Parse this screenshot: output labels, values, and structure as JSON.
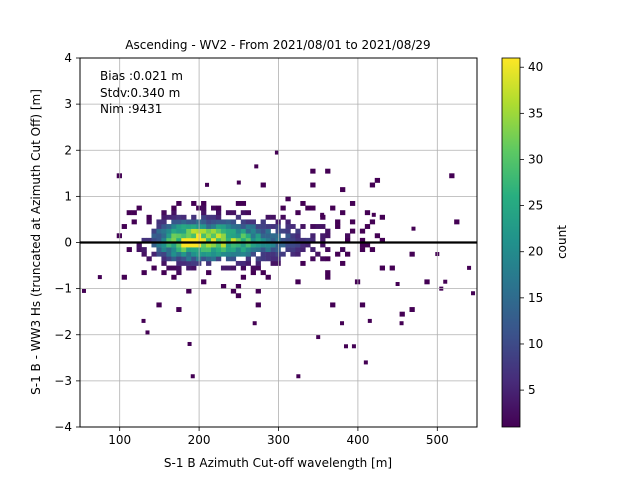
{
  "chart_data": {
    "type": "heatmap",
    "title": "Ascending - WV2 - From 2021/08/01 to 2021/08/29",
    "xlabel": "S-1 B Azimuth Cut-off wavelength [m]",
    "ylabel": "S-1 B - WW3 Hs (truncated at Azimuth Cut Off) [m]",
    "xlim": [
      50,
      550
    ],
    "ylim": [
      -4,
      4
    ],
    "xticks": [
      100,
      200,
      300,
      400,
      500
    ],
    "yticks": [
      -4,
      -3,
      -2,
      -1,
      0,
      1,
      2,
      3,
      4
    ],
    "grid": true,
    "zero_line": 0,
    "annotations": [
      "Bias :0.021 m",
      "Stdv:0.340 m",
      "Nim :9431"
    ],
    "colorbar": {
      "label": "count",
      "range": [
        1,
        41
      ],
      "ticks": [
        5,
        10,
        15,
        20,
        25,
        30,
        35,
        40
      ],
      "colormap": "viridis"
    },
    "stats": {
      "bias": 0.021,
      "stdv": 0.34,
      "n": 9431
    },
    "density_model": {
      "center_x": 190,
      "center_y": 0.05,
      "peak_count": 41,
      "x_sigma_left": 35,
      "x_sigma_right": 90,
      "y_sigma": 0.32
    },
    "outliers": [
      [
        55,
        -1.05
      ],
      [
        75,
        -0.75
      ],
      [
        130,
        -1.7
      ],
      [
        135,
        -1.95
      ],
      [
        188,
        -2.2
      ],
      [
        192,
        -2.9
      ],
      [
        270,
        -1.75
      ],
      [
        325,
        -2.9
      ],
      [
        350,
        -2.05
      ],
      [
        385,
        -2.25
      ],
      [
        395,
        -2.25
      ],
      [
        410,
        -2.6
      ],
      [
        380,
        -1.75
      ],
      [
        415,
        -1.7
      ],
      [
        455,
        -1.75
      ],
      [
        298,
        1.95
      ],
      [
        272,
        1.65
      ],
      [
        250,
        1.3
      ],
      [
        210,
        1.25
      ],
      [
        355,
        0.6
      ],
      [
        420,
        0.6
      ],
      [
        470,
        0.3
      ],
      [
        500,
        -0.25
      ],
      [
        510,
        -0.85
      ],
      [
        545,
        -1.1
      ],
      [
        540,
        -0.55
      ],
      [
        505,
        -1.0
      ],
      [
        450,
        -0.9
      ]
    ]
  }
}
